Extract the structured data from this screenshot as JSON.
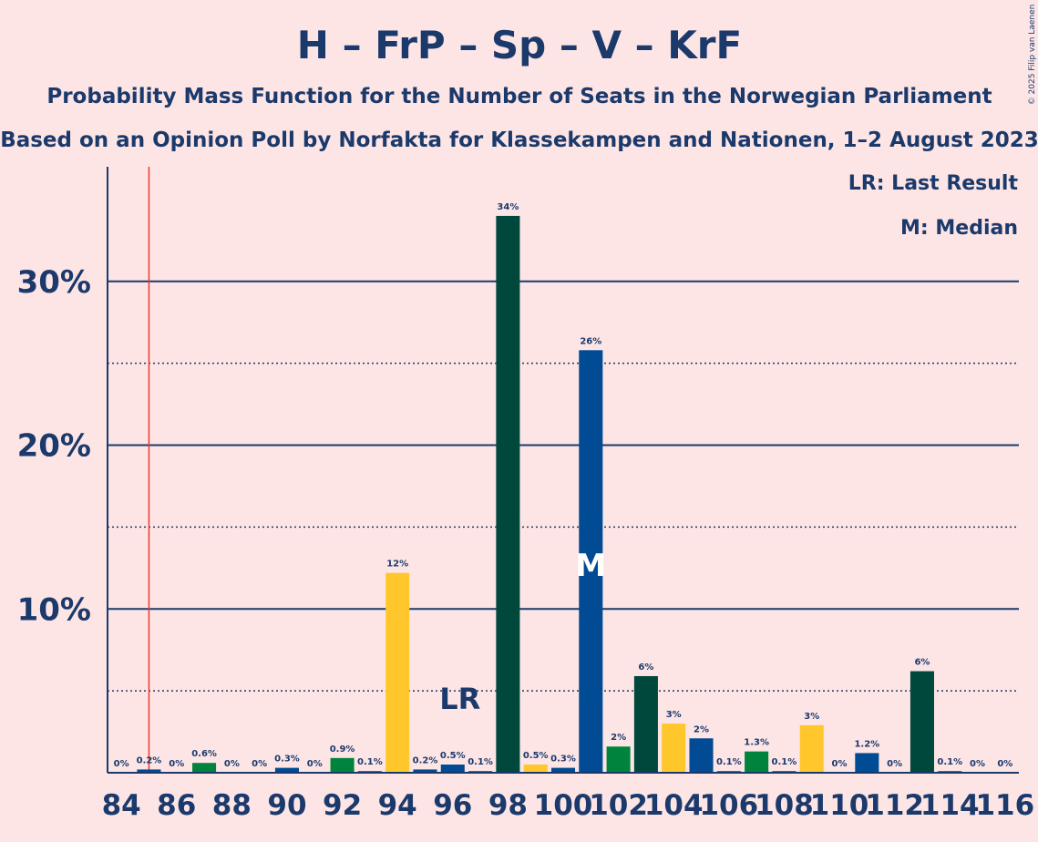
{
  "chart_data": {
    "type": "bar",
    "title": "H – FrP – Sp – V – KrF",
    "subtitle": "Probability Mass Function for the Number of Seats in the Norwegian Parliament",
    "subtitle2": "Based on an Opinion Poll by Norfakta for Klassekampen and Nationen, 1–2 August 2023",
    "copyright": "© 2025 Filip van Laenen",
    "legend_lines": [
      "LR: Last Result",
      "M: Median"
    ],
    "last_result": 85,
    "last_result_label": "LR",
    "median": 101,
    "median_label": "M",
    "x": [
      84,
      85,
      86,
      87,
      88,
      89,
      90,
      91,
      92,
      93,
      94,
      95,
      96,
      97,
      98,
      99,
      100,
      101,
      102,
      103,
      104,
      105,
      106,
      107,
      108,
      109,
      110,
      111,
      112,
      113,
      114,
      115,
      116
    ],
    "values": [
      0,
      0.2,
      0,
      0.6,
      0,
      0,
      0.3,
      0,
      0.9,
      0.1,
      12.2,
      0.2,
      0.5,
      0.1,
      34.0,
      0.5,
      0.3,
      25.8,
      1.6,
      5.9,
      3.0,
      2.1,
      0.1,
      1.3,
      0.1,
      2.9,
      0,
      1.2,
      0,
      6.2,
      0.1,
      0,
      0
    ],
    "value_labels": [
      "0%",
      "0.2%",
      "0%",
      "0.6%",
      "0%",
      "0%",
      "0.3%",
      "0%",
      "0.9%",
      "0.1%",
      "12%",
      "0.2%",
      "0.5%",
      "0.1%",
      "34%",
      "0.5%",
      "0.3%",
      "26%",
      "2%",
      "6%",
      "3%",
      "2%",
      "0.1%",
      "1.3%",
      "0.1%",
      "3%",
      "0%",
      "1.2%",
      "0%",
      "6%",
      "0.1%",
      "0%",
      "0%"
    ],
    "colors": [
      "#004b93",
      "#004b93",
      "#004b93",
      "#00843d",
      "#004b93",
      "#004b93",
      "#004b93",
      "#004b93",
      "#00843d",
      "#004b93",
      "#ffc72c",
      "#004b93",
      "#004b93",
      "#004b93",
      "#00483c",
      "#ffc72c",
      "#004b93",
      "#004b93",
      "#00843d",
      "#00483c",
      "#ffc72c",
      "#004b93",
      "#004b93",
      "#00843d",
      "#004b93",
      "#ffc72c",
      "#004b93",
      "#004b93",
      "#004b93",
      "#00483c",
      "#004b93",
      "#004b93",
      "#004b93"
    ],
    "xlim": [
      83.5,
      116.5
    ],
    "xticks": [
      84,
      86,
      88,
      90,
      92,
      94,
      96,
      98,
      100,
      102,
      104,
      106,
      108,
      110,
      112,
      114,
      116
    ],
    "ylim": [
      0,
      37
    ],
    "yticks": [
      {
        "value": 10,
        "label": "10%"
      },
      {
        "value": 20,
        "label": "20%"
      },
      {
        "value": 30,
        "label": "30%"
      }
    ],
    "minor_yticks": [
      5,
      15,
      25
    ],
    "grid": true
  }
}
